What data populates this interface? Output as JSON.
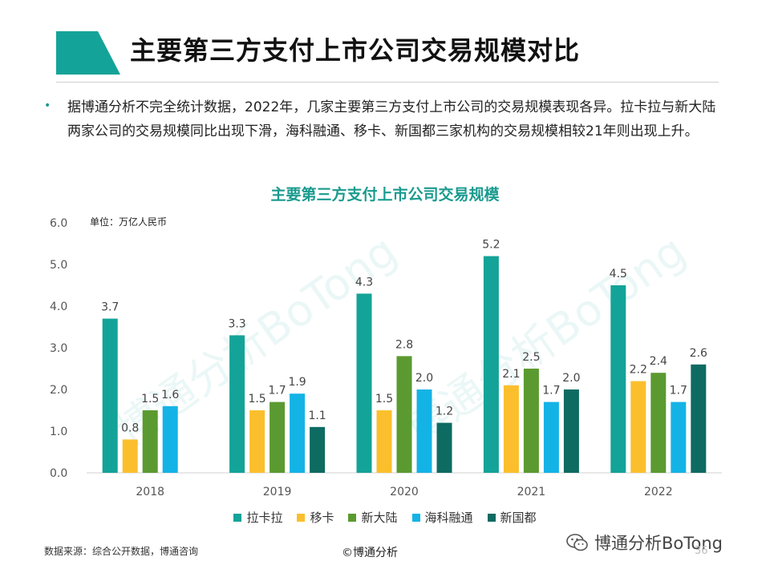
{
  "header": {
    "title": "主要第三方支付上市公司交易规模对比"
  },
  "summary": {
    "bullet": "•",
    "text": "据博通分析不完全统计数据，2022年，几家主要第三方支付上市公司的交易规模表现各异。拉卡拉与新大陆两家公司的交易规模同比出现下滑，海科融通、移卡、新国都三家机构的交易规模相较21年则出现上升。"
  },
  "chart_data": {
    "type": "bar",
    "title": "主要第三方支付上市公司交易规模",
    "unit_label": "单位：万亿人民币",
    "categories": [
      "2018",
      "2019",
      "2020",
      "2021",
      "2022"
    ],
    "series": [
      {
        "name": "拉卡拉",
        "color": "#14a398",
        "values": [
          3.7,
          3.3,
          4.3,
          5.2,
          4.5
        ]
      },
      {
        "name": "移卡",
        "color": "#fbbf2d",
        "values": [
          0.8,
          1.5,
          1.5,
          2.1,
          2.2
        ]
      },
      {
        "name": "新大陆",
        "color": "#5b9a30",
        "values": [
          1.5,
          1.7,
          2.8,
          2.5,
          2.4
        ]
      },
      {
        "name": "海科融通",
        "color": "#14b3e6",
        "values": [
          1.6,
          1.9,
          2.0,
          1.7,
          1.7
        ]
      },
      {
        "name": "新国都",
        "color": "#0d6b62",
        "values": [
          null,
          1.1,
          1.2,
          2.0,
          2.6
        ]
      }
    ],
    "ylim": [
      0,
      6
    ],
    "yticks": [
      "0.0",
      "1.0",
      "2.0",
      "3.0",
      "4.0",
      "5.0",
      "6.0"
    ],
    "xlabel": "",
    "ylabel": "",
    "legend": "bottom",
    "grid": false,
    "watermark_text": "博通分析BoTong"
  },
  "footer": {
    "source": "数据来源：综合公开数据，博通咨询",
    "copyright": "©博通分析",
    "brand": "博通分析BoTong",
    "page_number": "36"
  }
}
